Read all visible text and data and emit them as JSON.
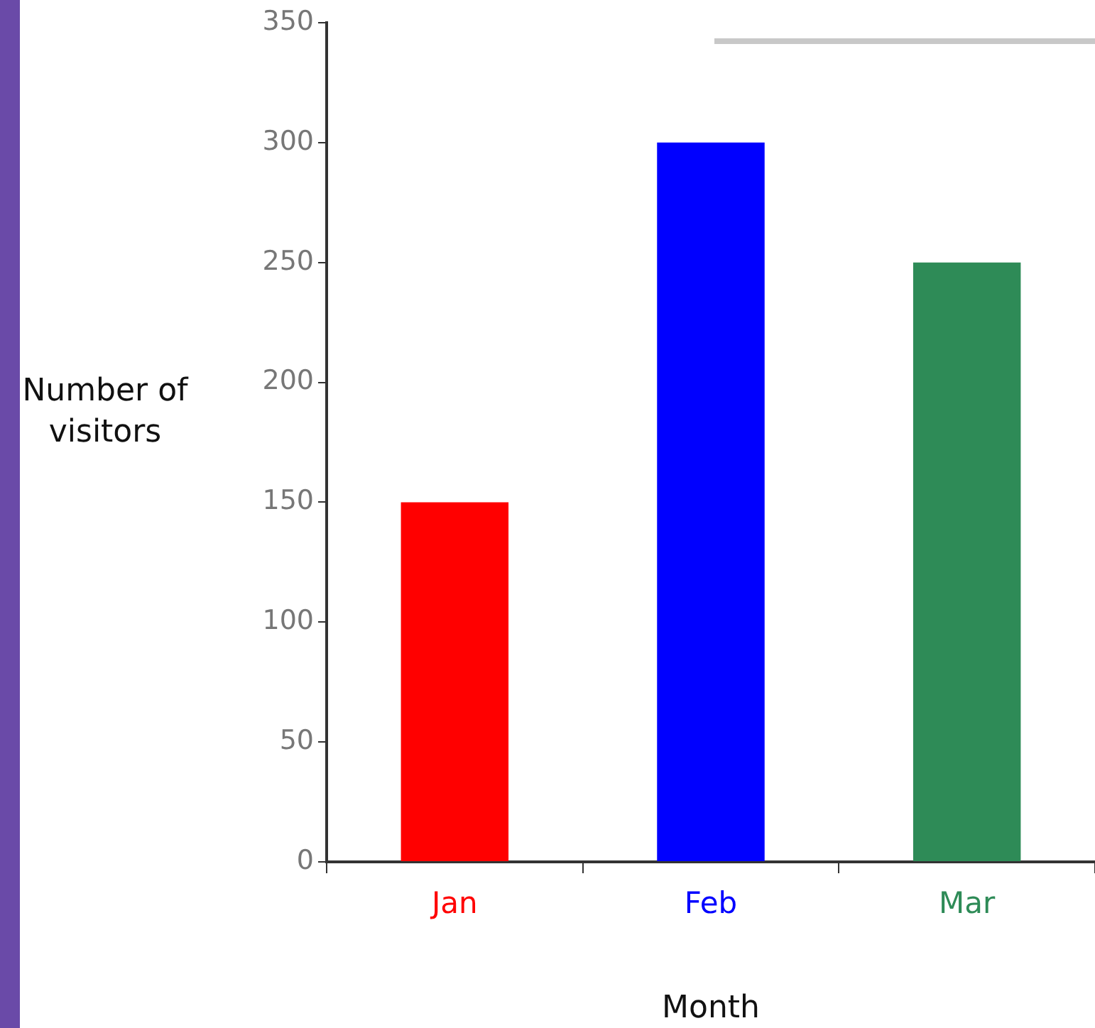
{
  "chart_data": {
    "type": "bar",
    "xlabel": "Month",
    "ylabel": "Number of visitors",
    "categories": [
      "Jan",
      "Feb",
      "Mar"
    ],
    "values": [
      150,
      300,
      250
    ],
    "colors": [
      "#ff0000",
      "#0000ff",
      "#2e8b57"
    ],
    "ylim": [
      0,
      350
    ],
    "yticks": [
      0,
      50,
      100,
      150,
      200,
      250,
      300,
      350
    ]
  }
}
